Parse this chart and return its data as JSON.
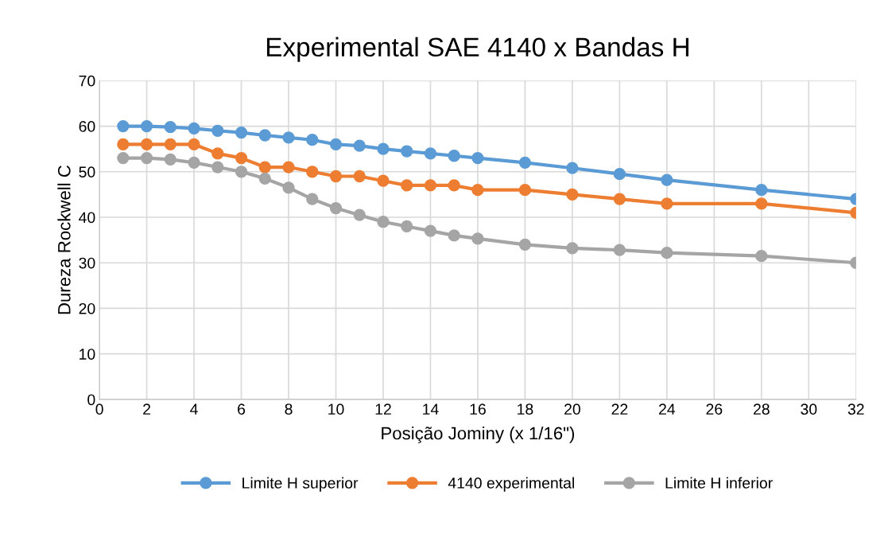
{
  "chart_data": {
    "type": "line",
    "title": "Experimental SAE 4140 x Bandas H",
    "xlabel": "Posição Jominy (x 1/16\")",
    "ylabel": "Dureza Rockwell C",
    "x": [
      1,
      2,
      3,
      4,
      5,
      6,
      7,
      8,
      9,
      10,
      11,
      12,
      13,
      14,
      15,
      16,
      18,
      20,
      22,
      24,
      28,
      32
    ],
    "series": [
      {
        "name": "Limite H superior",
        "color": "#5b9bd5",
        "values": [
          60,
          60,
          59.8,
          59.5,
          59,
          58.6,
          58,
          57.5,
          57,
          56,
          55.7,
          55,
          54.5,
          54,
          53.5,
          53,
          52,
          50.8,
          49.5,
          48.2,
          46,
          44
        ]
      },
      {
        "name": "4140 experimental",
        "color": "#ed7d31",
        "values": [
          56,
          56,
          56,
          56,
          54,
          53,
          51,
          51,
          50,
          49,
          49,
          48,
          47,
          47,
          47,
          46,
          46,
          45,
          44,
          43,
          43,
          41
        ]
      },
      {
        "name": "Limite H inferior",
        "color": "#a5a5a5",
        "values": [
          53,
          53,
          52.7,
          52,
          51,
          50,
          48.5,
          46.5,
          44,
          42,
          40.5,
          39,
          38,
          37,
          36,
          35.3,
          34,
          33.2,
          32.8,
          32.2,
          31.5,
          30
        ]
      }
    ],
    "xlim": [
      0,
      32
    ],
    "xticks": [
      0,
      2,
      4,
      6,
      8,
      10,
      12,
      14,
      16,
      18,
      20,
      22,
      24,
      26,
      28,
      30,
      32
    ],
    "ylim": [
      0,
      70
    ],
    "yticks": [
      0,
      10,
      20,
      30,
      40,
      50,
      60,
      70
    ],
    "grid": true,
    "legend": "bottom",
    "marker": "circle",
    "line_style": "solid"
  }
}
